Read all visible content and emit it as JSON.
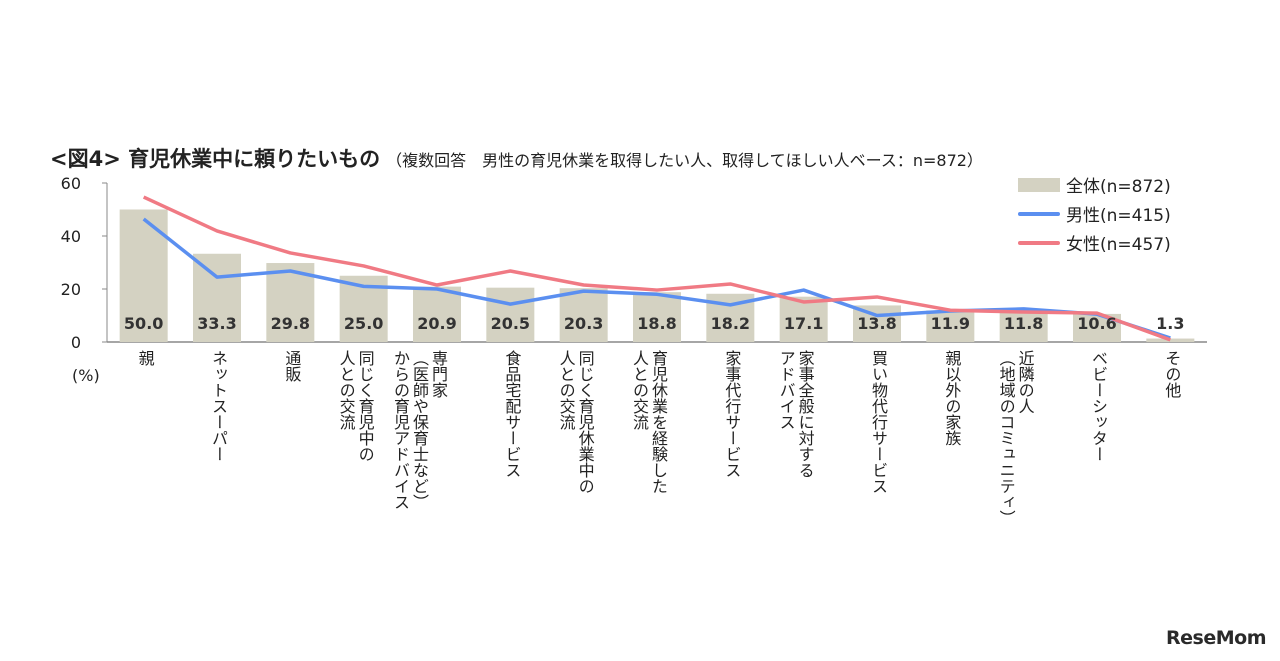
{
  "title": {
    "main": "<図4> 育児休業中に頼りたいもの",
    "sub": "（複数回答　男性の育児休業を取得したい人、取得してほしい人ベース：n=872）"
  },
  "unit": "(%)",
  "logo": "ReseMom",
  "chart_data": {
    "type": "bar+line",
    "ylim": [
      0,
      60
    ],
    "yticks": [
      0,
      20,
      40,
      60
    ],
    "ylabel": "(%)",
    "legend_placement": "top-right",
    "categories": [
      "親",
      "ネットスーパー",
      "通販",
      "同じく育児中の\n人との交流",
      "専門家\n（医師や保育士など）\nからの育児アドバイス",
      "食品宅配サービス",
      "同じく育児休業中の\n人との交流",
      "育児休業を経験した\n人との交流",
      "家事代行サービス",
      "家事全般に対する\nアドバイス",
      "買い物代行サービス",
      "親以外の家族",
      "近隣の人\n（地域のコミュニティ）",
      "ベビーシッター",
      "その他"
    ],
    "series": [
      {
        "name": "全体(n=872)",
        "kind": "bar",
        "color": "#d4d2c2",
        "values": [
          50.0,
          33.3,
          29.8,
          25.0,
          20.9,
          20.5,
          20.3,
          18.8,
          18.2,
          17.1,
          13.8,
          11.9,
          11.8,
          10.6,
          1.3
        ]
      },
      {
        "name": "男性(n=415)",
        "kind": "line",
        "color": "#5b8ff0",
        "values": [
          46.4,
          24.5,
          26.8,
          21.0,
          20.0,
          14.3,
          19.2,
          18.0,
          14.0,
          19.6,
          10.0,
          11.7,
          12.5,
          10.5,
          1.5
        ]
      },
      {
        "name": "女性(n=457)",
        "kind": "line",
        "color": "#f07a84",
        "values": [
          54.7,
          41.9,
          33.6,
          28.7,
          21.5,
          26.8,
          21.5,
          19.6,
          21.9,
          15.1,
          17.0,
          12.0,
          11.3,
          10.9,
          0.8
        ]
      }
    ]
  }
}
